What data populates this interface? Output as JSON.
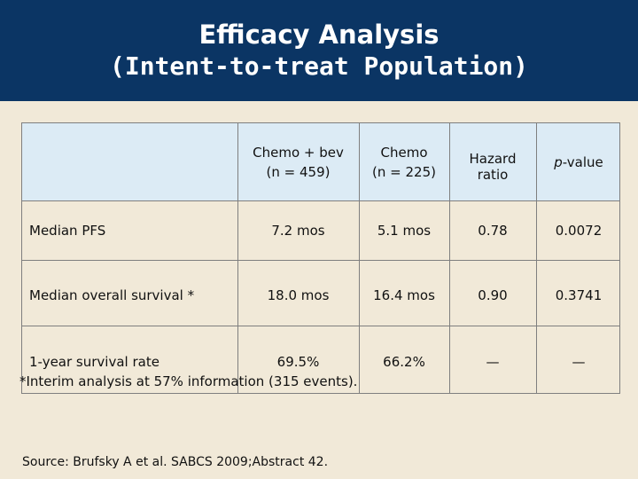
{
  "title": {
    "line1": "Efficacy Analysis",
    "line2": "(Intent-to-treat Population)"
  },
  "table": {
    "headers": [
      "",
      "Chemo + bev\n(n = 459)",
      "Chemo\n(n = 225)",
      "Hazard\nratio",
      "p-value"
    ],
    "rows": [
      {
        "label": "Median PFS",
        "chemo_bev": "7.2 mos",
        "chemo": "5.1 mos",
        "hr": "0.78",
        "p": "0.0072"
      },
      {
        "label": "Median overall survival *",
        "chemo_bev": "18.0 mos",
        "chemo": "16.4 mos",
        "hr": "0.90",
        "p": "0.3741"
      },
      {
        "label": "1-year survival rate",
        "chemo_bev": "69.5%",
        "chemo": "66.2%",
        "hr": "—",
        "p": "—"
      }
    ]
  },
  "footnote": "*Interim analysis at 57% information (315 events).",
  "source": "Source: Brufsky A et al. SABCS 2009;Abstract 42.",
  "colors": {
    "title_bar": "#0b3564",
    "background": "#f1e9d8",
    "header_fill": "#dcebf5"
  }
}
